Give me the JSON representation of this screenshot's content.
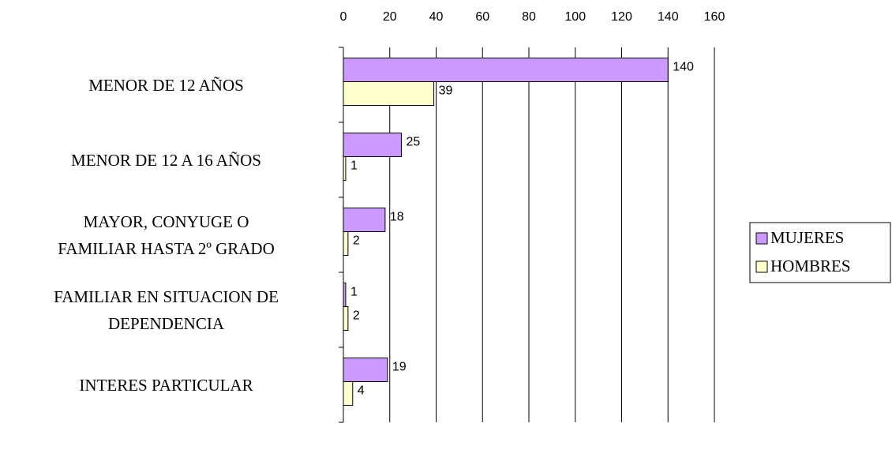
{
  "chart_data": {
    "type": "bar",
    "orientation": "horizontal",
    "categories": [
      "MENOR DE 12 AÑOS",
      "MENOR DE 12 A 16 AÑOS",
      "MAYOR, CONYUGE O\nFAMILIAR HASTA 2º GRADO",
      "FAMILIAR EN SITUACION DE\nDEPENDENCIA",
      "INTERES PARTICULAR"
    ],
    "series": [
      {
        "name": "MUJERES",
        "color": "#cc99ff",
        "values": [
          140,
          25,
          18,
          1,
          19
        ]
      },
      {
        "name": "HOMBRES",
        "color": "#ffffcc",
        "values": [
          39,
          1,
          2,
          2,
          4
        ]
      }
    ],
    "xlim": [
      0,
      160
    ],
    "xticks": [
      0,
      20,
      40,
      60,
      80,
      100,
      120,
      140,
      160
    ],
    "grid": true,
    "legend": "right"
  }
}
